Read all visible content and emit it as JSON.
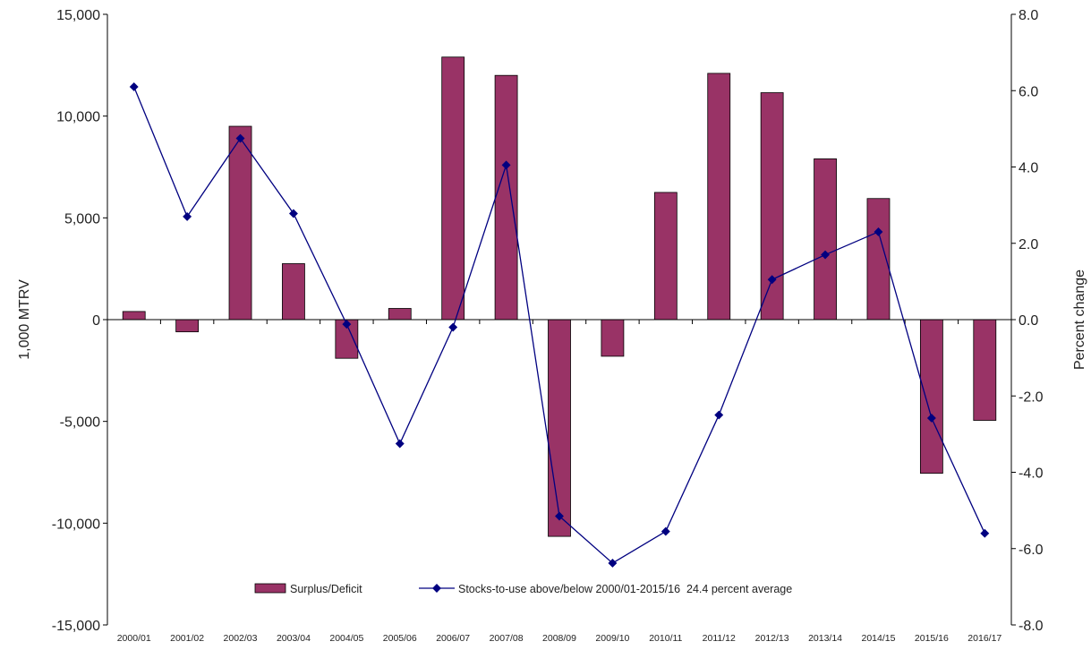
{
  "chart_data": {
    "type": "bar",
    "categories": [
      "2000/01",
      "2001/02",
      "2002/03",
      "2003/04",
      "2004/05",
      "2005/06",
      "2006/07",
      "2007/08",
      "2008/09",
      "2009/10",
      "2010/11",
      "2011/12",
      "2012/13",
      "2013/14",
      "2014/15",
      "2015/16",
      "2016/17"
    ],
    "series": [
      {
        "name": "Surplus/Deficit",
        "type": "bar",
        "axis": "left",
        "color": "#993366",
        "values": [
          400,
          -600,
          9500,
          2750,
          -1900,
          550,
          12900,
          12000,
          -10650,
          -1800,
          6250,
          12100,
          11150,
          7900,
          5950,
          -7550,
          -4950
        ]
      },
      {
        "name": "Stocks-to-use above/below 2000/01-2015/16  24.4 percent average",
        "type": "line",
        "axis": "right",
        "color": "#000080",
        "values": [
          6.1,
          2.7,
          4.75,
          2.78,
          -0.12,
          -3.25,
          -0.2,
          4.05,
          -5.15,
          -6.38,
          -5.55,
          -2.5,
          1.05,
          1.7,
          2.3,
          -2.58,
          -5.6
        ]
      }
    ],
    "ylabel": "1,000 MTRV",
    "y2label": "Percent change",
    "ylim": [
      -15000,
      15000
    ],
    "y2lim": [
      -8,
      8
    ],
    "yticks": [
      "15,000",
      "10,000",
      "5,000",
      "0",
      "-5,000",
      "-10,000",
      "-15,000"
    ],
    "y2ticks": [
      "8.0",
      "6.0",
      "4.0",
      "2.0",
      "0.0",
      "-2.0",
      "-4.0",
      "-6.0",
      "-8.0"
    ],
    "legend_position": "bottom-center",
    "grid": false
  }
}
